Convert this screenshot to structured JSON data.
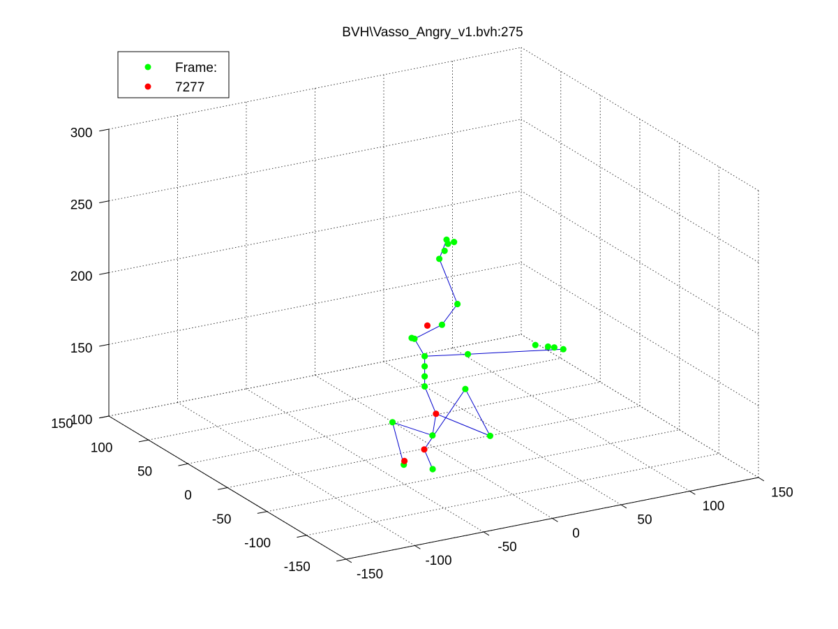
{
  "chart_data": {
    "type": "scatter",
    "projection": "3d",
    "title": "BVH\\Vasso_Angry_v1.bvh:275",
    "xlabel": "",
    "ylabel": "",
    "zlabel": "",
    "grid": true,
    "legend_position": "top-left",
    "xlim": [
      -150,
      150
    ],
    "ylim": [
      -150,
      150
    ],
    "zlim": [
      100,
      300
    ],
    "x_ticks": [
      "-150",
      "-100",
      "-50",
      "0",
      "50",
      "100",
      "150"
    ],
    "y_ticks": [
      "-150",
      "-100",
      "-50",
      "0",
      "50",
      "100",
      "150"
    ],
    "z_ticks": [
      "100",
      "150",
      "200",
      "250",
      "300"
    ],
    "colors": {
      "joint": "#00ff00",
      "marker": "#ff0000",
      "bone": "#0000cc"
    },
    "legend": [
      {
        "label": "Frame:",
        "color": "#00ff00"
      },
      {
        "label": "7277",
        "color": "#ff0000"
      }
    ],
    "series": [
      {
        "name": "Frame:",
        "color": "#00ff00",
        "points": [
          {
            "x": -43,
            "y": -37,
            "z": 108
          },
          {
            "x": -26,
            "y": -44,
            "z": 104
          },
          {
            "x": -2,
            "y": -2,
            "z": 109
          },
          {
            "x": 33,
            "y": -14,
            "z": 106
          },
          {
            "x": -38,
            "y": -14,
            "z": 129
          },
          {
            "x": 19,
            "y": -7,
            "z": 139
          },
          {
            "x": -10,
            "y": -6,
            "z": 146
          },
          {
            "x": -10,
            "y": -6,
            "z": 153
          },
          {
            "x": -10,
            "y": -6,
            "z": 160
          },
          {
            "x": -10,
            "y": -6,
            "z": 167
          },
          {
            "x": 22,
            "y": -5,
            "z": 162
          },
          {
            "x": 70,
            "y": -7,
            "z": 160
          },
          {
            "x": 78,
            "y": -9,
            "z": 158
          },
          {
            "x": 82,
            "y": -10,
            "z": 157
          },
          {
            "x": 88,
            "y": -11,
            "z": 155
          },
          {
            "x": -18,
            "y": -7,
            "z": 181
          },
          {
            "x": -20,
            "y": -7,
            "z": 182
          },
          {
            "x": 2,
            "y": -7,
            "z": 187
          },
          {
            "x": 15,
            "y": -4,
            "z": 198
          },
          {
            "x": 7,
            "y": 5,
            "z": 228
          },
          {
            "x": 12,
            "y": 7,
            "z": 232
          },
          {
            "x": 15,
            "y": 8,
            "z": 236
          },
          {
            "x": 20,
            "y": 9,
            "z": 236
          },
          {
            "x": 14,
            "y": 8,
            "z": 239
          }
        ]
      },
      {
        "name": "7277",
        "color": "#ff0000",
        "points": [
          {
            "x": -42,
            "y": -36,
            "z": 110
          },
          {
            "x": -31,
            "y": -42,
            "z": 118
          },
          {
            "x": 0,
            "y": -3,
            "z": 124
          },
          {
            "x": -8,
            "y": -6,
            "z": 188
          }
        ]
      }
    ],
    "bones": [
      [
        [
          -43,
          -37,
          108
        ],
        [
          -38,
          -14,
          129
        ]
      ],
      [
        [
          -38,
          -14,
          129
        ],
        [
          -2,
          -2,
          109
        ]
      ],
      [
        [
          -26,
          -44,
          104
        ],
        [
          -31,
          -42,
          118
        ]
      ],
      [
        [
          -31,
          -42,
          118
        ],
        [
          19,
          -7,
          139
        ]
      ],
      [
        [
          19,
          -7,
          139
        ],
        [
          33,
          -14,
          106
        ]
      ],
      [
        [
          -2,
          -2,
          109
        ],
        [
          0,
          -3,
          124
        ]
      ],
      [
        [
          0,
          -3,
          124
        ],
        [
          33,
          -14,
          106
        ]
      ],
      [
        [
          0,
          -3,
          124
        ],
        [
          -10,
          -6,
          146
        ]
      ],
      [
        [
          -10,
          -6,
          146
        ],
        [
          -10,
          -6,
          167
        ]
      ],
      [
        [
          -10,
          -6,
          167
        ],
        [
          22,
          -5,
          162
        ]
      ],
      [
        [
          22,
          -5,
          162
        ],
        [
          88,
          -11,
          155
        ]
      ],
      [
        [
          -10,
          -6,
          167
        ],
        [
          -18,
          -7,
          181
        ]
      ],
      [
        [
          -18,
          -7,
          181
        ],
        [
          2,
          -7,
          187
        ]
      ],
      [
        [
          2,
          -7,
          187
        ],
        [
          15,
          -4,
          198
        ]
      ],
      [
        [
          15,
          -4,
          198
        ],
        [
          7,
          5,
          228
        ]
      ],
      [
        [
          7,
          5,
          228
        ],
        [
          14,
          8,
          239
        ]
      ]
    ]
  }
}
